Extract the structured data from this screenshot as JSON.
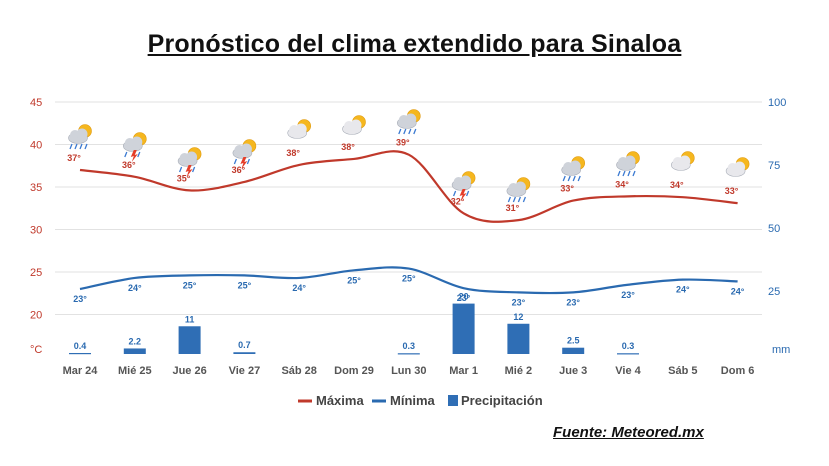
{
  "title": "Pronóstico del clima extendido para Sinaloa",
  "source": "Fuente: Meteored.mx",
  "colors": {
    "max": "#c0392b",
    "min": "#2a6ab0",
    "precip": "#2f6eb5",
    "grid": "#e2e2e2"
  },
  "chart_data": {
    "type": "line",
    "categories": [
      "Mar 24",
      "Mié 25",
      "Jue 26",
      "Vie 27",
      "Sáb 28",
      "Dom 29",
      "Lun 30",
      "Mar 1",
      "Mié 2",
      "Jue 3",
      "Vie 4",
      "Sáb 5",
      "Dom 6"
    ],
    "y_left": {
      "unit": "°C",
      "ticks": [
        "45",
        "40",
        "35",
        "30",
        "25",
        "20"
      ],
      "range": [
        15,
        45
      ]
    },
    "y_right": {
      "unit": "mm",
      "ticks": [
        "100",
        "75",
        "50",
        "25"
      ],
      "range": [
        0,
        100
      ]
    },
    "series": [
      {
        "name": "Máxima",
        "kind": "line",
        "axis": "left",
        "values": [
          37,
          36,
          35,
          36,
          38,
          38,
          39,
          32,
          31,
          33,
          34,
          34,
          33
        ],
        "labels": [
          "37°",
          "36°",
          "35°",
          "36°",
          "38°",
          "38°",
          "39°",
          "32°",
          "31°",
          "33°",
          "34°",
          "34°",
          "33°"
        ],
        "curve": [
          37,
          36.2,
          34.6,
          35.6,
          37.6,
          38.3,
          38.8,
          31.9,
          31.1,
          33.4,
          33.9,
          33.8,
          33.1
        ]
      },
      {
        "name": "Mínima",
        "kind": "line",
        "axis": "left",
        "values": [
          23,
          24,
          25,
          25,
          24,
          25,
          25,
          23,
          23,
          23,
          23,
          24,
          24
        ],
        "labels": [
          "23°",
          "24°",
          "25°",
          "25°",
          "24°",
          "25°",
          "25°",
          "23°",
          "23°",
          "23°",
          "23°",
          "24°",
          "24°"
        ],
        "curve": [
          23,
          24.3,
          24.6,
          24.6,
          24.3,
          25.2,
          25.4,
          23.1,
          22.6,
          22.6,
          23.5,
          24.1,
          23.9
        ]
      },
      {
        "name": "Precipitación",
        "kind": "bar",
        "axis": "right",
        "values": [
          0.4,
          2.2,
          11,
          0.7,
          0,
          0,
          0.3,
          20,
          12,
          2.5,
          0.3,
          0,
          0
        ],
        "labels": [
          "0.4",
          "2.2",
          "11",
          "0.7",
          "",
          "",
          "0.3",
          "20",
          "12",
          "2.5",
          "0.3",
          "",
          ""
        ]
      }
    ],
    "icons": [
      "rain-storm-icon",
      "thunderstorm-icon",
      "thunderstorm-icon",
      "thunderstorm-icon",
      "partly-cloudy-icon",
      "partly-cloudy-icon",
      "rain-storm-icon",
      "thunderstorm-icon",
      "rain-storm-icon",
      "rain-storm-icon",
      "rain-storm-icon",
      "partly-cloudy-icon",
      "partly-cloudy-icon"
    ],
    "grid": true,
    "legend_position": "bottom-center"
  }
}
